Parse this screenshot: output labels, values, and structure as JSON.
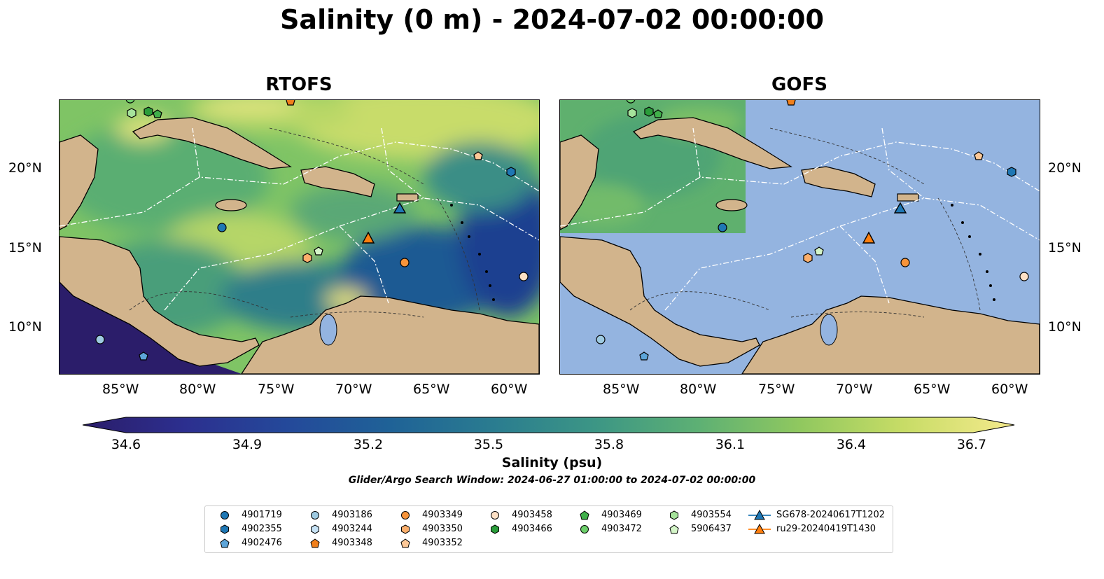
{
  "title": "Salinity (0 m) - 2024-07-02 00:00:00",
  "panels": [
    {
      "title": "RTOFS"
    },
    {
      "title": "GOFS"
    }
  ],
  "axes": {
    "lon_ticks": [
      "85°W",
      "80°W",
      "75°W",
      "70°W",
      "65°W",
      "60°W"
    ],
    "lat_ticks": [
      "20°N",
      "15°N",
      "10°N"
    ]
  },
  "colorbar": {
    "ticks": [
      "34.6",
      "34.9",
      "35.2",
      "35.5",
      "35.8",
      "36.1",
      "36.4",
      "36.7"
    ],
    "label": "Salinity (psu)",
    "min": 34.6,
    "max": 36.7,
    "colors": [
      "#2b1d6a",
      "#2c2f8f",
      "#24499a",
      "#1f6297",
      "#2a7c90",
      "#3c9685",
      "#5db074",
      "#90c85f",
      "#c7dc66",
      "#f5ea8d"
    ]
  },
  "search_window": "Glider/Argo Search Window: 2024-06-27 01:00:00 to 2024-07-02 00:00:00",
  "legend": {
    "items": [
      {
        "label": "4901719",
        "marker": "circle",
        "color": "#1f77b4"
      },
      {
        "label": "4902355",
        "marker": "hexagon",
        "color": "#1f77b4"
      },
      {
        "label": "4902476",
        "marker": "pentagon",
        "color": "#5da5d9"
      },
      {
        "label": "4903186",
        "marker": "circle",
        "color": "#9ecae1"
      },
      {
        "label": "4903244",
        "marker": "hexagon",
        "color": "#c6e2f5"
      },
      {
        "label": "4903348",
        "marker": "pentagon",
        "color": "#f07f1b"
      },
      {
        "label": "4903349",
        "marker": "circle",
        "color": "#f7943a"
      },
      {
        "label": "4903350",
        "marker": "hexagon",
        "color": "#fbae6b"
      },
      {
        "label": "4903352",
        "marker": "pentagon",
        "color": "#fdc897"
      },
      {
        "label": "4903458",
        "marker": "circle",
        "color": "#fde0c5"
      },
      {
        "label": "4903466",
        "marker": "hexagon",
        "color": "#2a9d3a"
      },
      {
        "label": "4903469",
        "marker": "pentagon",
        "color": "#40b04a"
      },
      {
        "label": "4903472",
        "marker": "circle",
        "color": "#6ccf6a"
      },
      {
        "label": "4903554",
        "marker": "hexagon",
        "color": "#a6e39b"
      },
      {
        "label": "5906437",
        "marker": "pentagon",
        "color": "#d4f5c8"
      },
      {
        "label": "SG678-20240617T1202",
        "marker": "triangle",
        "color": "#1f77b4"
      },
      {
        "label": "ru29-20240419T1430",
        "marker": "triangle",
        "color": "#ff7f0e"
      }
    ]
  },
  "colors": {
    "land": "#d2b48c",
    "gofs_ocean": "#94b4e0",
    "lakes": "#94b4e0"
  }
}
